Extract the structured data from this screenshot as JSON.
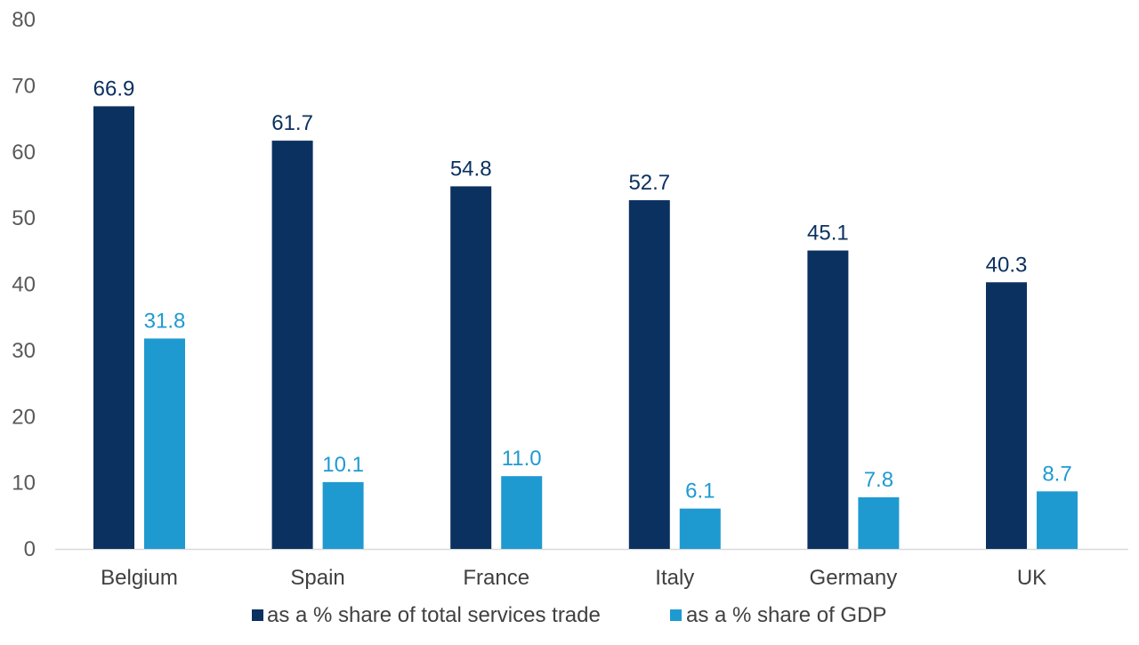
{
  "chart_data": {
    "type": "bar",
    "categories": [
      "Belgium",
      "Spain",
      "France",
      "Italy",
      "Germany",
      "UK"
    ],
    "series": [
      {
        "name": "as a % share of total services trade",
        "color": "#0b3160",
        "values": [
          66.9,
          61.7,
          54.8,
          52.7,
          45.1,
          40.3
        ],
        "labels": [
          "66.9",
          "61.7",
          "54.8",
          "52.7",
          "45.1",
          "40.3"
        ]
      },
      {
        "name": "as a % share of GDP",
        "color": "#1f9ad1",
        "values": [
          31.8,
          10.1,
          11.0,
          6.1,
          7.8,
          8.7
        ],
        "labels": [
          "31.8",
          "10.1",
          "11.0",
          "6.1",
          "7.8",
          "8.7"
        ]
      }
    ],
    "ylim": [
      0,
      80
    ],
    "yticks": [
      0,
      10,
      20,
      30,
      40,
      50,
      60,
      70,
      80
    ],
    "grid": false,
    "legend_position": "bottom"
  }
}
